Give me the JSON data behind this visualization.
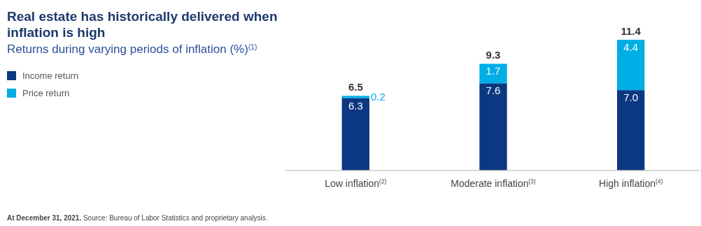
{
  "chart_data": {
    "type": "bar",
    "stacked": true,
    "title": "Real estate has historically delivered when inflation is high",
    "subtitle": "Returns during varying periods of inflation (%)$^{(1)}$",
    "categories": [
      "Low inflation$^{(2)}$",
      "Moderate inflation$^{(3)}$",
      "High inflation$^{(4)}$"
    ],
    "series": [
      {
        "name": "Income return",
        "color": "#0b3880",
        "values": [
          6.3,
          7.6,
          7.0
        ],
        "value_labels": [
          "6.3",
          "7.6",
          "7.0"
        ]
      },
      {
        "name": "Price return",
        "color": "#00aee6",
        "values": [
          0.2,
          1.7,
          4.4
        ],
        "value_labels": [
          "0.2",
          "1.7",
          "4.4"
        ]
      }
    ],
    "totals": [
      "6.5",
      "9.3",
      "11.4"
    ],
    "legend": "top left",
    "annotations": [
      "At December 31, 2021.",
      "Source: Bureau of Labor Statistics and proprietary analysis."
    ]
  }
}
